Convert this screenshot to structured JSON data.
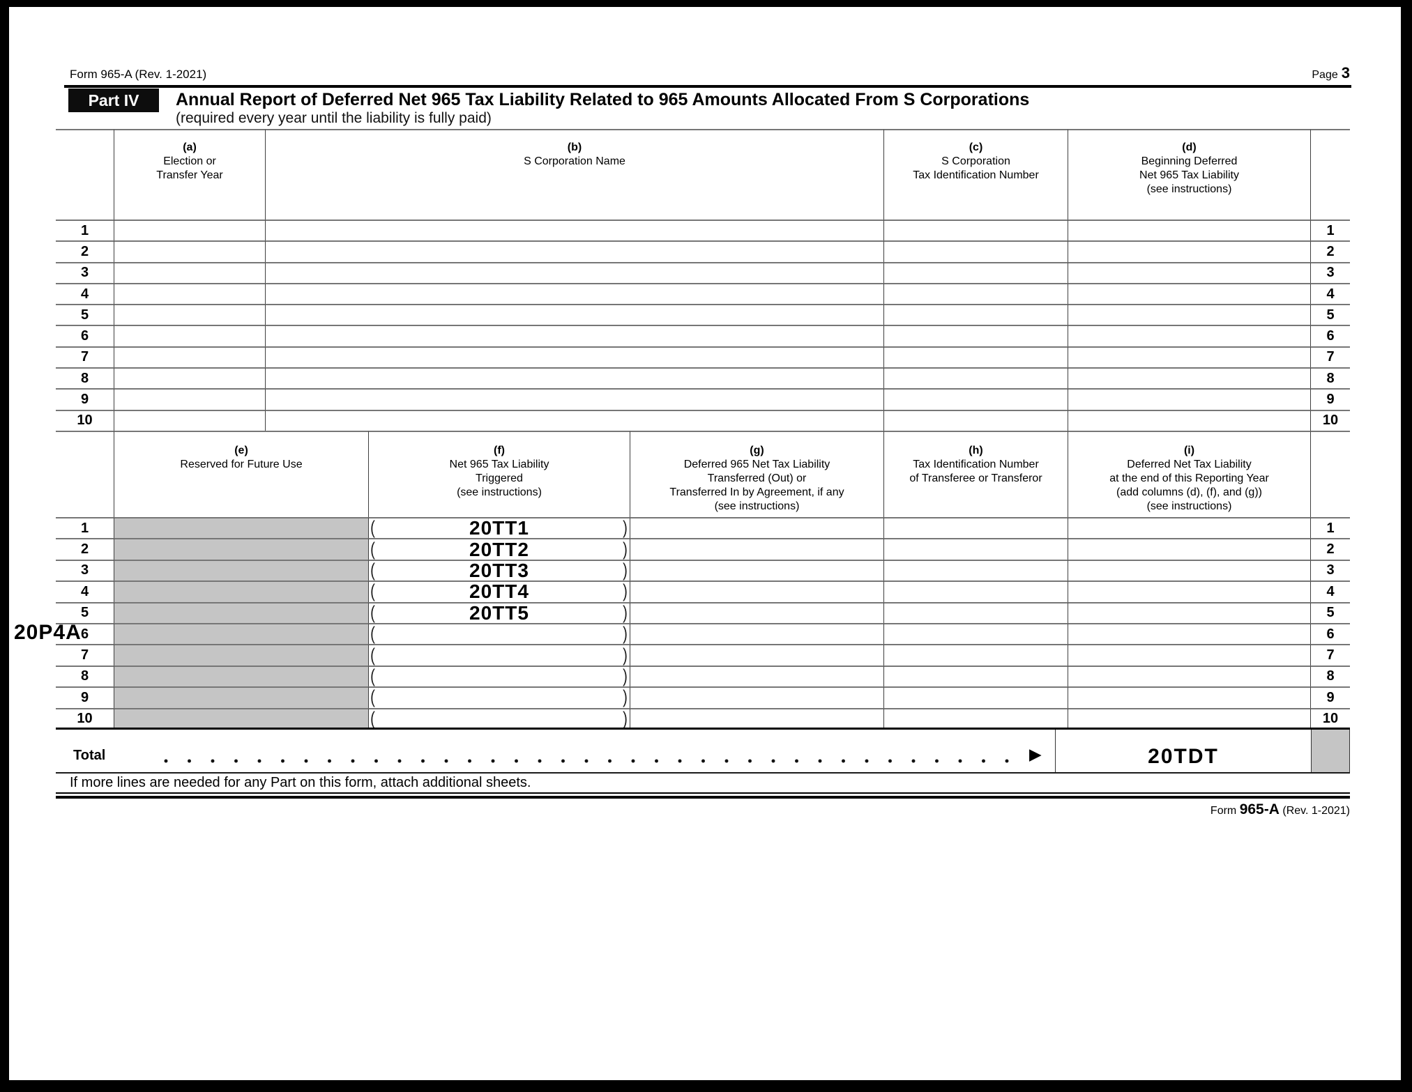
{
  "page": {
    "header_form_id": "Form 965-A (Rev. 1-2021)",
    "page_word": "Page",
    "page_number": "3",
    "footnote": "If more lines are needed for any Part on this form, attach additional sheets.",
    "footer": {
      "form_word": "Form",
      "form_number": "965-A",
      "revision": "(Rev. 1-2021)"
    }
  },
  "part4": {
    "label": "Part IV",
    "title": "Annual Report of Deferred Net 965 Tax Liability Related to 965 Amounts Allocated From S Corporations",
    "subtitle": "(required every year until the liability is fully paid)"
  },
  "margin_label": "20P4A",
  "colors": {
    "reserved_fill": "#c5c5c5",
    "banner_fill": "#0d0d0d"
  },
  "table_ad": {
    "headers": {
      "a": {
        "tag": "(a)",
        "lines": [
          "Election or",
          "Transfer Year"
        ]
      },
      "b": {
        "tag": "(b)",
        "lines": [
          "S Corporation Name"
        ]
      },
      "c": {
        "tag": "(c)",
        "lines": [
          "S Corporation",
          "Tax Identification Number"
        ]
      },
      "d": {
        "tag": "(d)",
        "lines": [
          "Beginning Deferred",
          "Net 965 Tax Liability",
          "(see instructions)"
        ]
      }
    },
    "rows": [
      {
        "num": "1",
        "a": "",
        "b": "",
        "c": "",
        "d": ""
      },
      {
        "num": "2",
        "a": "",
        "b": "",
        "c": "",
        "d": ""
      },
      {
        "num": "3",
        "a": "",
        "b": "",
        "c": "",
        "d": ""
      },
      {
        "num": "4",
        "a": "",
        "b": "",
        "c": "",
        "d": ""
      },
      {
        "num": "5",
        "a": "",
        "b": "",
        "c": "",
        "d": ""
      },
      {
        "num": "6",
        "a": "",
        "b": "",
        "c": "",
        "d": ""
      },
      {
        "num": "7",
        "a": "",
        "b": "",
        "c": "",
        "d": ""
      },
      {
        "num": "8",
        "a": "",
        "b": "",
        "c": "",
        "d": ""
      },
      {
        "num": "9",
        "a": "",
        "b": "",
        "c": "",
        "d": ""
      },
      {
        "num": "10",
        "a": "",
        "b": "",
        "c": "",
        "d": ""
      }
    ]
  },
  "table_ei": {
    "headers": {
      "e": {
        "tag": "(e)",
        "lines": [
          "Reserved for Future Use"
        ]
      },
      "f": {
        "tag": "(f)",
        "lines": [
          "Net 965 Tax Liability",
          "Triggered",
          "(see instructions)"
        ]
      },
      "g": {
        "tag": "(g)",
        "lines": [
          "Deferred 965 Net Tax Liability",
          "Transferred (Out) or",
          "Transferred In by Agreement, if any",
          "(see instructions)"
        ]
      },
      "h": {
        "tag": "(h)",
        "lines": [
          "Tax Identification Number",
          "of Transferee or Transferor"
        ]
      },
      "i": {
        "tag": "(i)",
        "lines": [
          "Deferred Net Tax Liability",
          "at the end of this Reporting Year",
          "(add columns (d), (f), and (g))",
          "(see instructions)"
        ]
      }
    },
    "paren_open": "(",
    "paren_close": ")",
    "rows": [
      {
        "num": "1",
        "f": "20TT1",
        "g": "",
        "h": "",
        "i": ""
      },
      {
        "num": "2",
        "f": "20TT2",
        "g": "",
        "h": "",
        "i": ""
      },
      {
        "num": "3",
        "f": "20TT3",
        "g": "",
        "h": "",
        "i": ""
      },
      {
        "num": "4",
        "f": "20TT4",
        "g": "",
        "h": "",
        "i": ""
      },
      {
        "num": "5",
        "f": "20TT5",
        "g": "",
        "h": "",
        "i": ""
      },
      {
        "num": "6",
        "f": "",
        "g": "",
        "h": "",
        "i": ""
      },
      {
        "num": "7",
        "f": "",
        "g": "",
        "h": "",
        "i": ""
      },
      {
        "num": "8",
        "f": "",
        "g": "",
        "h": "",
        "i": ""
      },
      {
        "num": "9",
        "f": "",
        "g": "",
        "h": "",
        "i": ""
      },
      {
        "num": "10",
        "f": "",
        "g": "",
        "h": "",
        "i": ""
      }
    ]
  },
  "total_row": {
    "label": "Total",
    "arrow": "▶",
    "value": "20TDT"
  }
}
